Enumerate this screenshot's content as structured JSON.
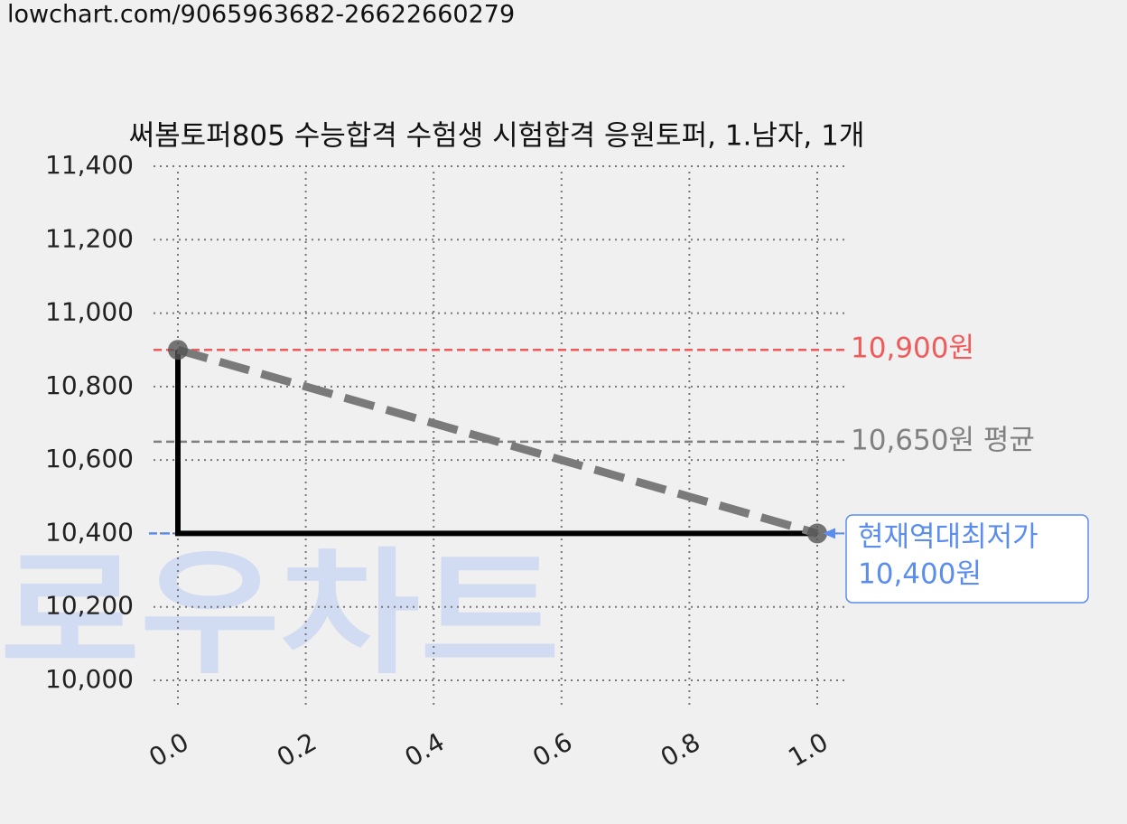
{
  "url": "lowchart.com/9065963682-26622660279",
  "chart_data": {
    "type": "line",
    "title": "써봄토퍼805 수능합격 수험생 시험합격 응원토퍼, 1.남자, 1개",
    "watermark": "로우차트",
    "xlim": [
      0,
      1
    ],
    "xticks": [
      {
        "value": 0,
        "label": "0.0"
      },
      0.2,
      0.4,
      0.6,
      0.8,
      {
        "value": 1,
        "label": "1.0"
      }
    ],
    "ylim": [
      10000,
      11400
    ],
    "yticks": [
      {
        "value": 10000,
        "label": "10,000"
      },
      {
        "value": 10200,
        "label": "10,200"
      },
      {
        "value": 10400,
        "label": "10,400"
      },
      {
        "value": 10600,
        "label": "10,600"
      },
      {
        "value": 10800,
        "label": "10,800"
      },
      {
        "value": 11000,
        "label": "11,000"
      },
      {
        "value": 11200,
        "label": "11,200"
      },
      {
        "value": 11400,
        "label": "11,400"
      }
    ],
    "grid": true,
    "series": [
      {
        "color": "#000000",
        "style": "solid",
        "x": [
          0,
          0,
          1
        ],
        "values": [
          10900,
          10400,
          10400
        ]
      },
      {
        "color": "#7a7a7a",
        "style": "dashed",
        "markers": true,
        "x": [
          0,
          1
        ],
        "values": [
          10900,
          10400
        ]
      }
    ],
    "ref_lines": [
      {
        "value": 10900,
        "label": "10,900원",
        "color": "#f05a5a"
      },
      {
        "value": 10650,
        "label": "10,650원 평균",
        "color": "#808080"
      },
      {
        "value": 10400,
        "color": "#5b8def"
      }
    ],
    "annotation": {
      "x": 1,
      "value": 10400,
      "lines": [
        "현재역대최저가",
        "10,400원"
      ],
      "color": "#5b8def"
    }
  }
}
